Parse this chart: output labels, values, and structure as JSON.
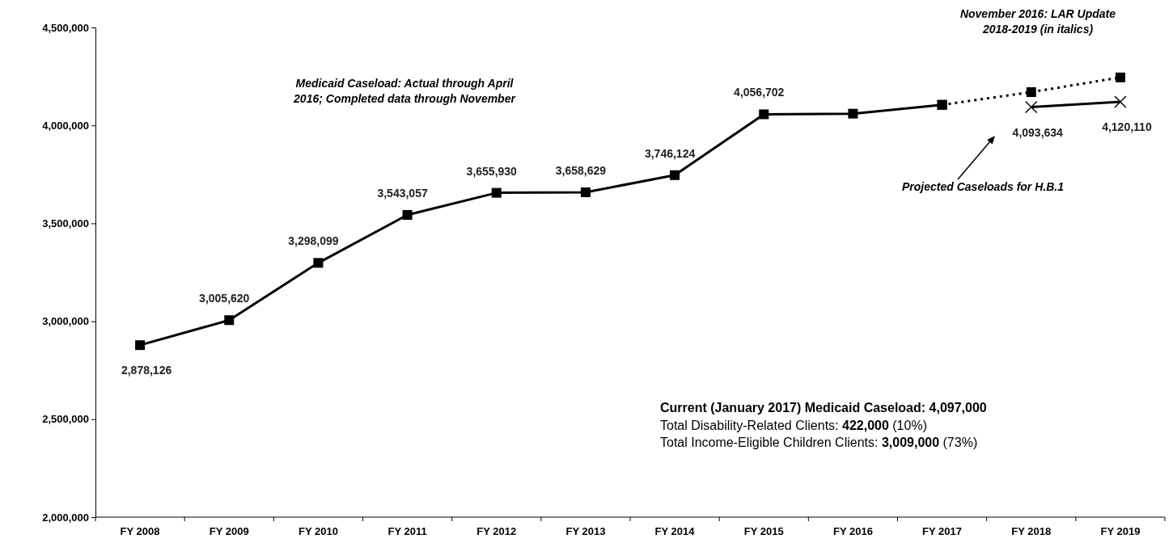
{
  "chart_data": {
    "type": "line",
    "categories": [
      "FY 2008",
      "FY 2009",
      "FY 2010",
      "FY 2011",
      "FY 2012",
      "FY 2013",
      "FY 2014",
      "FY 2015",
      "FY 2016",
      "FY 2017",
      "FY 2018",
      "FY 2019"
    ],
    "series": [
      {
        "color": "#000000",
        "marker": "square",
        "line_style": "solid",
        "values": [
          2878126,
          3005620,
          3298099,
          3543057,
          3655930,
          3658629,
          3746124,
          4056702,
          4060000,
          4105000,
          null,
          null
        ],
        "value_labels": [
          "2,878,126",
          "3,005,620",
          "3,298,099",
          "3,543,057",
          "3,655,930",
          "3,658,629",
          "3,746,124",
          "4,056,702",
          null,
          null,
          null,
          null
        ]
      },
      {
        "color": "#000000",
        "marker": "square",
        "line_style": "dotted",
        "values": [
          null,
          null,
          null,
          null,
          null,
          null,
          null,
          null,
          null,
          4105000,
          4170000,
          4245000
        ]
      },
      {
        "color": "#000000",
        "marker": "cross",
        "line_style": "solid",
        "values": [
          null,
          null,
          null,
          null,
          null,
          null,
          null,
          null,
          null,
          null,
          4093634,
          4120110
        ],
        "value_labels": [
          null,
          null,
          null,
          null,
          null,
          null,
          null,
          null,
          null,
          null,
          "4,093,634",
          "4,120,110"
        ]
      }
    ],
    "ylim": [
      2000000,
      4500000
    ],
    "yticks": [
      {
        "value": 2000000,
        "label": "2,000,000"
      },
      {
        "value": 2500000,
        "label": "2,500,000"
      },
      {
        "value": 3000000,
        "label": "3,000,000"
      },
      {
        "value": 3500000,
        "label": "3,500,000"
      },
      {
        "value": 4000000,
        "label": "4,000,000"
      },
      {
        "value": 4500000,
        "label": "4,500,000"
      }
    ],
    "grid": false,
    "annotations": [
      "Medicaid Caseload:  Actual through April\n2016; Completed data through November",
      "November 2016:  LAR Update\n2018-2019  (in italics)",
      "Projected Caseloads for H.B.1",
      "Current (January 2017) Medicaid Caseload:  4,097,000\nTotal Disability-Related Clients: 422,000 (10%)\nTotal Income-Eligible Children Clients:  3,009,000 (73%)"
    ]
  }
}
